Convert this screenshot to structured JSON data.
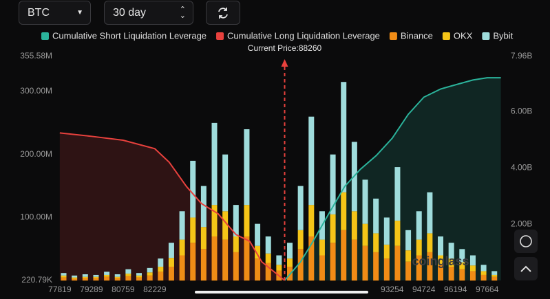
{
  "controls": {
    "symbol": "BTC",
    "period": "30 day"
  },
  "chart_data": {
    "type": "bar",
    "watermark": "coinglass",
    "current_price_label": "Current Price:",
    "current_price": 88260,
    "current_price_color": "#e8413d",
    "x": [
      78000,
      78500,
      79000,
      79500,
      80000,
      80500,
      81000,
      81500,
      82000,
      82500,
      83000,
      83500,
      84000,
      84500,
      85000,
      85500,
      86000,
      86500,
      87000,
      87500,
      88000,
      88500,
      89000,
      89500,
      90000,
      90500,
      91000,
      91500,
      92000,
      92500,
      93000,
      93500,
      94000,
      94500,
      95000,
      95500,
      96000,
      96500,
      97000,
      97500,
      98000
    ],
    "xlim": [
      77600,
      98600
    ],
    "xticks": [
      77819,
      79289,
      80759,
      82229,
      93254,
      94724,
      96194,
      97664
    ],
    "ylim": [
      0.22079,
      355.58
    ],
    "yticks": [
      {
        "value": 0.22079,
        "label": "220.79K"
      },
      {
        "value": 100,
        "label": "100.00M"
      },
      {
        "value": 200,
        "label": "200.00M"
      },
      {
        "value": 300,
        "label": "300.00M"
      },
      {
        "value": 355.58,
        "label": "355.58M"
      }
    ],
    "y2lim": [
      0,
      7.96
    ],
    "y2ticks": [
      {
        "value": 2,
        "label": "2.00B"
      },
      {
        "value": 4,
        "label": "4.00B"
      },
      {
        "value": 6,
        "label": "6.00B"
      },
      {
        "value": 7.96,
        "label": "7.96B"
      }
    ],
    "series": [
      {
        "name": "Cumulative Short Liquidation Leverage",
        "type": "line",
        "axis": "y2",
        "color": "#2bb39b",
        "x": [
          88260,
          89000,
          89579,
          90309,
          91049,
          91779,
          92519,
          93254,
          94000,
          94724,
          95500,
          96194,
          97000,
          97664,
          98300
        ],
        "values": [
          0,
          0.66,
          1.39,
          2.37,
          3.34,
          3.95,
          4.44,
          5.05,
          5.9,
          6.51,
          6.8,
          6.95,
          7.12,
          7.2,
          7.2
        ]
      },
      {
        "name": "Cumulative Long Liquidation Leverage",
        "type": "line",
        "axis": "y2",
        "color": "#e8413d",
        "x": [
          77819,
          79289,
          80759,
          82229,
          82900,
          83699,
          84400,
          85169,
          86000,
          86639,
          87200,
          87800,
          88260
        ],
        "values": [
          5.24,
          5.12,
          4.98,
          4.68,
          4.2,
          3.34,
          2.73,
          2.37,
          1.63,
          1.39,
          0.66,
          0.29,
          0
        ]
      },
      {
        "name": "Binance",
        "color": "#f08c16",
        "values": [
          5,
          3,
          4,
          4,
          6,
          4,
          7,
          5,
          8,
          14,
          22,
          40,
          60,
          50,
          70,
          65,
          45,
          70,
          35,
          28,
          16,
          22,
          50,
          70,
          40,
          60,
          80,
          65,
          55,
          45,
          35,
          55,
          30,
          40,
          45,
          25,
          22,
          18,
          15,
          9,
          6
        ]
      },
      {
        "name": "OKX",
        "color": "#f5c518",
        "values": [
          3,
          2,
          2,
          2,
          3,
          2,
          4,
          3,
          5,
          8,
          14,
          25,
          40,
          35,
          50,
          45,
          25,
          50,
          20,
          15,
          9,
          13,
          30,
          50,
          25,
          45,
          60,
          45,
          35,
          30,
          22,
          40,
          18,
          25,
          30,
          15,
          13,
          11,
          9,
          6,
          3
        ]
      },
      {
        "name": "Bybit",
        "color": "#9fdcdc",
        "values": [
          4,
          3,
          4,
          3,
          5,
          4,
          7,
          4,
          7,
          13,
          24,
          45,
          90,
          65,
          130,
          90,
          50,
          120,
          35,
          27,
          15,
          25,
          70,
          140,
          45,
          95,
          175,
          110,
          70,
          55,
          43,
          85,
          32,
          45,
          65,
          30,
          25,
          21,
          16,
          10,
          6
        ]
      }
    ]
  }
}
